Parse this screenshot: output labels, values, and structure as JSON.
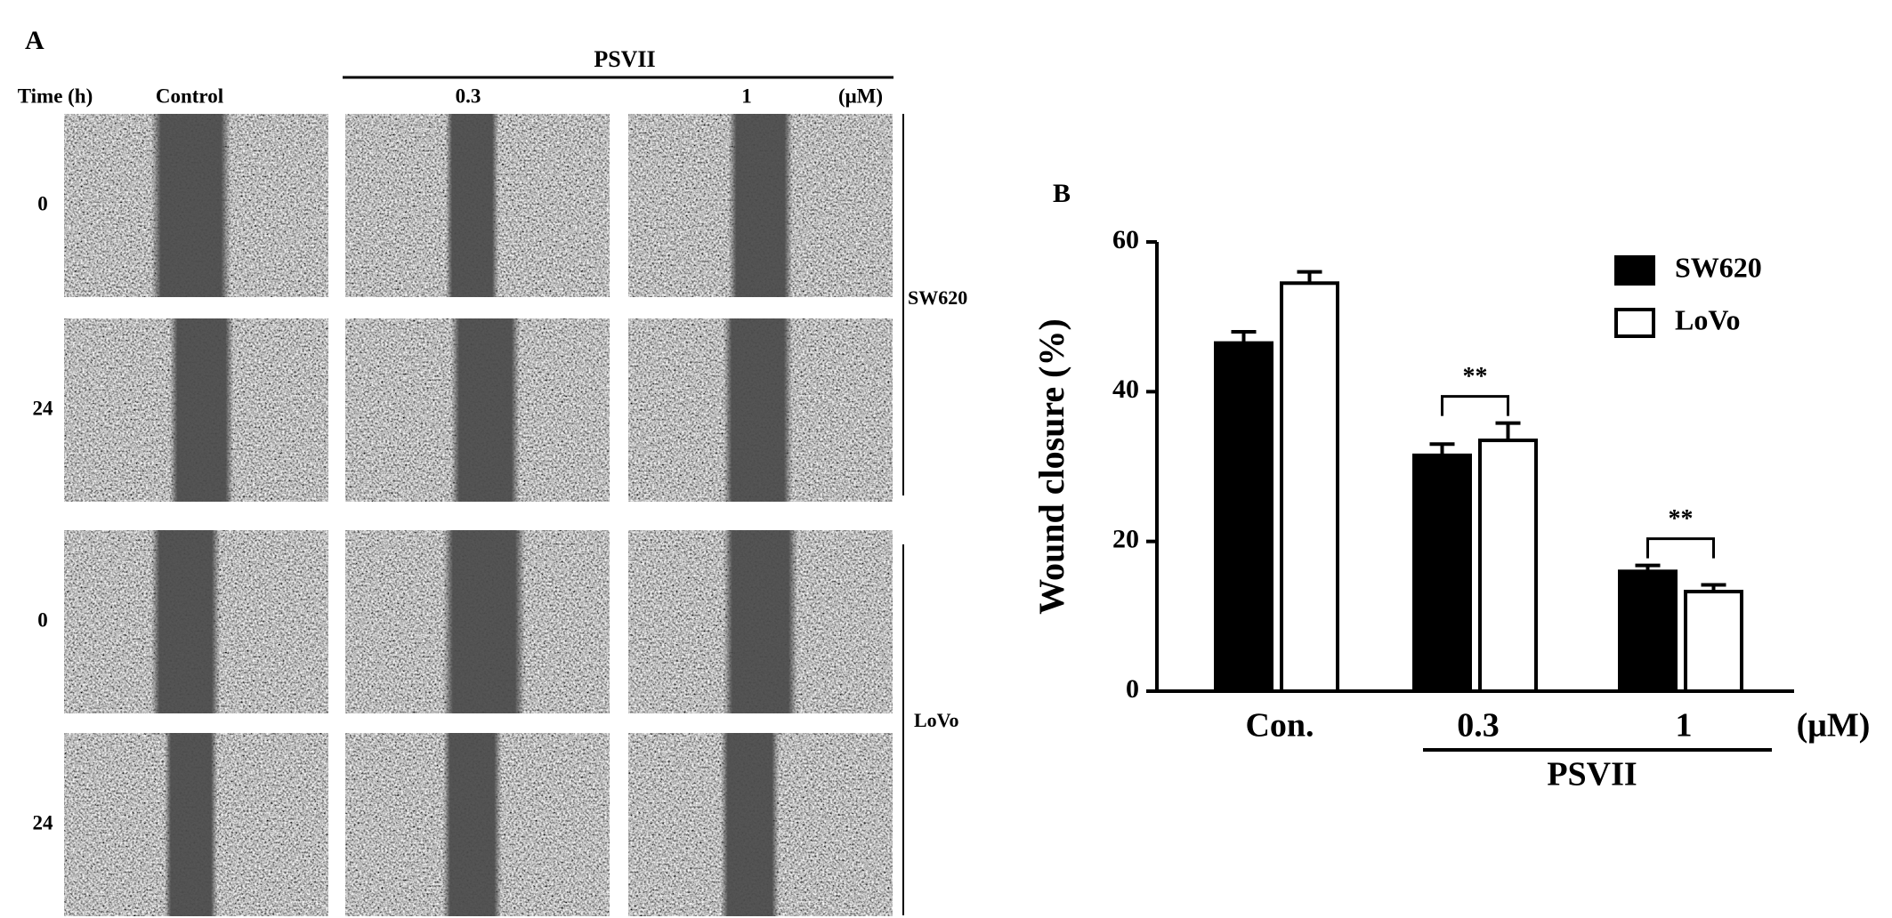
{
  "panel_a": {
    "label": "A",
    "group_label": "PSVII",
    "time_header": "Time (h)",
    "columns": [
      "Control",
      "0.3",
      "1"
    ],
    "unit": "(μM)",
    "rows": [
      "0",
      "24",
      "0",
      "24"
    ],
    "cell_lines": [
      "SW620",
      "LoVo"
    ]
  },
  "chart_data": {
    "type": "bar",
    "panel_label": "B",
    "ylabel": "Wound closure (%)",
    "categories": [
      "Con.",
      "0.3",
      "1"
    ],
    "unit_label": "(μM)",
    "group_label": "PSVII",
    "series": [
      {
        "name": "SW620",
        "color": "#000000",
        "values": [
          46.5,
          31.5,
          16
        ],
        "errors": [
          1.5,
          1.5,
          0.8
        ]
      },
      {
        "name": "LoVo",
        "color": "#ffffff",
        "values": [
          54.5,
          33.5,
          13.3
        ],
        "errors": [
          1.5,
          2.3,
          0.9
        ]
      }
    ],
    "significance": [
      null,
      "**",
      "**"
    ],
    "ylim": [
      0,
      60
    ],
    "yticks": [
      0,
      20,
      40,
      60
    ]
  }
}
